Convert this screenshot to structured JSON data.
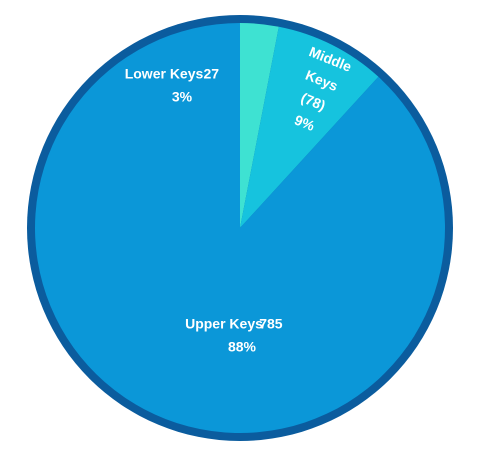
{
  "chart_data": {
    "type": "pie",
    "categories": [
      "Lower Keys",
      "Middle Keys",
      "Upper Keys"
    ],
    "values": [
      27,
      78,
      785
    ],
    "value_labels": [
      "27",
      "(78)",
      "785"
    ],
    "percent_labels": [
      "3%",
      "9%",
      "88%"
    ],
    "colors": [
      "#3ee2d2",
      "#16c3de",
      "#0b97d8"
    ],
    "border_color": "#0b5c9e"
  }
}
